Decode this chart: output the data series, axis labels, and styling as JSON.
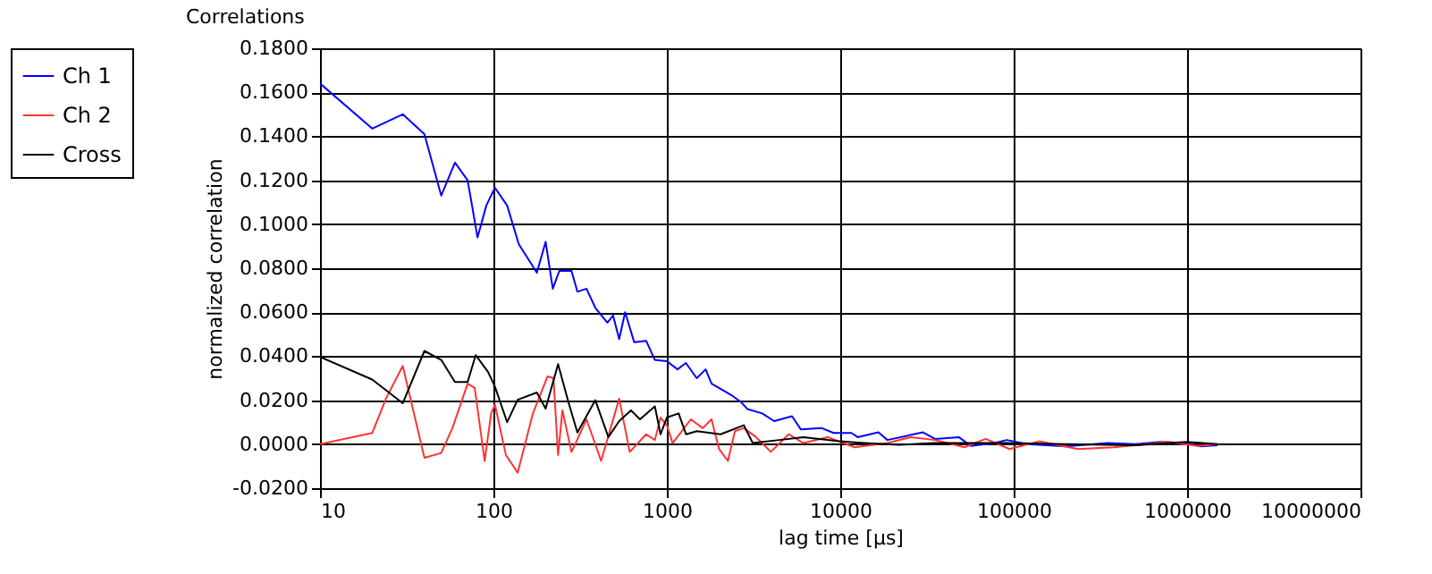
{
  "chart_data": {
    "type": "line",
    "title": "Correlations",
    "xlabel": "lag time [µs]",
    "ylabel": "normalized correlation",
    "log": "x",
    "grid": true,
    "legend": "left",
    "xlim": [
      10,
      10000000
    ],
    "xticks": [
      10,
      100,
      1000,
      10000,
      100000,
      1000000,
      10000000
    ],
    "ylim": [
      -0.02,
      0.18
    ],
    "yticks": [
      {
        "value": -0.02,
        "label": "-0.0200"
      },
      {
        "value": 0,
        "label": "0.0000"
      },
      {
        "value": 0.02,
        "label": "0.0200"
      },
      {
        "value": 0.04,
        "label": "0.0400"
      },
      {
        "value": 0.06,
        "label": "0.0600"
      },
      {
        "value": 0.08,
        "label": "0.0800"
      },
      {
        "value": 0.1,
        "label": "0.1000"
      },
      {
        "value": 0.12,
        "label": "0.1200"
      },
      {
        "value": 0.14,
        "label": "0.1400"
      },
      {
        "value": 0.16,
        "label": "0.1600"
      },
      {
        "value": 0.18,
        "label": "0.1800"
      }
    ],
    "series": [
      {
        "name": "Ch 1",
        "color": "#0000ff",
        "x": [
          10,
          20,
          30,
          40,
          50,
          60,
          71,
          81,
          91,
          102,
          120,
          140,
          178,
          200,
          220,
          240,
          282,
          305,
          344,
          387,
          454,
          490,
          531,
          575,
          648,
          760,
          853,
          1000,
          1153,
          1288,
          1487,
          1674,
          1811,
          2389,
          2690,
          2910,
          3548,
          4160,
          5270,
          5930,
          7830,
          9160,
          11600,
          12600,
          16600,
          18700,
          30000,
          35200,
          48300,
          56600,
          77600,
          91200,
          120000,
          200000,
          350000,
          500000,
          700000,
          1000000,
          1200000,
          1500000
        ],
        "values": [
          0.164,
          0.1435,
          0.15,
          0.141,
          0.113,
          0.128,
          0.12,
          0.094,
          0.1085,
          0.1166,
          0.1085,
          0.091,
          0.078,
          0.092,
          0.0707,
          0.0788,
          0.0788,
          0.0693,
          0.0707,
          0.062,
          0.0553,
          0.0585,
          0.0478,
          0.06,
          0.0464,
          0.047,
          0.0383,
          0.0377,
          0.034,
          0.0369,
          0.03,
          0.034,
          0.0275,
          0.022,
          0.019,
          0.016,
          0.014,
          0.0105,
          0.0127,
          0.0067,
          0.0073,
          0.0051,
          0.0051,
          0.0032,
          0.0054,
          0.0019,
          0.0054,
          0.0024,
          0.0032,
          -0.0008,
          0.0005,
          0.0019,
          0.0,
          -0.001,
          0.0005,
          0.0,
          0.001,
          0.0005,
          -0.001,
          -0.0005
        ]
      },
      {
        "name": "Ch 2",
        "color": "#ff3333",
        "x": [
          10,
          20,
          24,
          30,
          40,
          50,
          58,
          71,
          78,
          89,
          97,
          102,
          118,
          138,
          169,
          205,
          222,
          236,
          250,
          282,
          298,
          344,
          418,
          531,
          611,
          760,
          853,
          920,
          1000,
          1080,
          1375,
          1610,
          1810,
          2000,
          2250,
          2470,
          2780,
          3270,
          3980,
          5040,
          6130,
          8470,
          12100,
          18700,
          25500,
          35200,
          52100,
          68900,
          94600,
          140000,
          235000,
          378000,
          771000,
          1150000,
          1500000
        ],
        "values": [
          0.0,
          0.0051,
          0.0207,
          0.0356,
          -0.0062,
          -0.004,
          0.0073,
          0.0275,
          0.0256,
          -0.0076,
          0.014,
          0.018,
          -0.0049,
          -0.013,
          0.014,
          0.0308,
          0.03,
          -0.0049,
          0.0154,
          -0.0035,
          0.0005,
          0.0113,
          -0.0076,
          0.0207,
          -0.0035,
          0.0045,
          0.0019,
          0.0121,
          0.0086,
          0.0005,
          0.0113,
          0.0073,
          0.0113,
          -0.0022,
          -0.0076,
          0.0059,
          0.0073,
          0.0032,
          -0.0035,
          0.0045,
          0.0005,
          0.0032,
          -0.0014,
          0.0005,
          0.0032,
          0.0019,
          -0.0014,
          0.0024,
          -0.0022,
          0.0013,
          -0.0022,
          -0.0014,
          0.001,
          -0.0008,
          0.0
        ]
      },
      {
        "name": "Cross",
        "color": "#000000",
        "x": [
          10,
          20,
          30,
          40,
          50,
          60,
          71,
          79,
          93,
          102,
          120,
          138,
          178,
          200,
          236,
          270,
          305,
          387,
          460,
          531,
          621,
          700,
          853,
          920,
          1000,
          1170,
          1290,
          1490,
          2040,
          2780,
          3130,
          4450,
          6130,
          9870,
          13700,
          21800,
          35200,
          56600,
          91000,
          200000,
          500000,
          1000000,
          1500000
        ],
        "values": [
          0.0397,
          0.0294,
          0.0186,
          0.0424,
          0.0383,
          0.0283,
          0.0283,
          0.0405,
          0.0329,
          0.0262,
          0.01,
          0.0202,
          0.0235,
          0.0162,
          0.0364,
          0.0194,
          0.0053,
          0.02,
          0.0032,
          0.0105,
          0.0154,
          0.0113,
          0.0172,
          0.0045,
          0.0121,
          0.014,
          0.0045,
          0.0059,
          0.0045,
          0.0086,
          0.0005,
          0.0019,
          0.0032,
          0.0013,
          0.0005,
          -0.0003,
          0.0005,
          0.0005,
          0.0005,
          0.0,
          -0.0005,
          0.001,
          0.0
        ]
      }
    ]
  }
}
